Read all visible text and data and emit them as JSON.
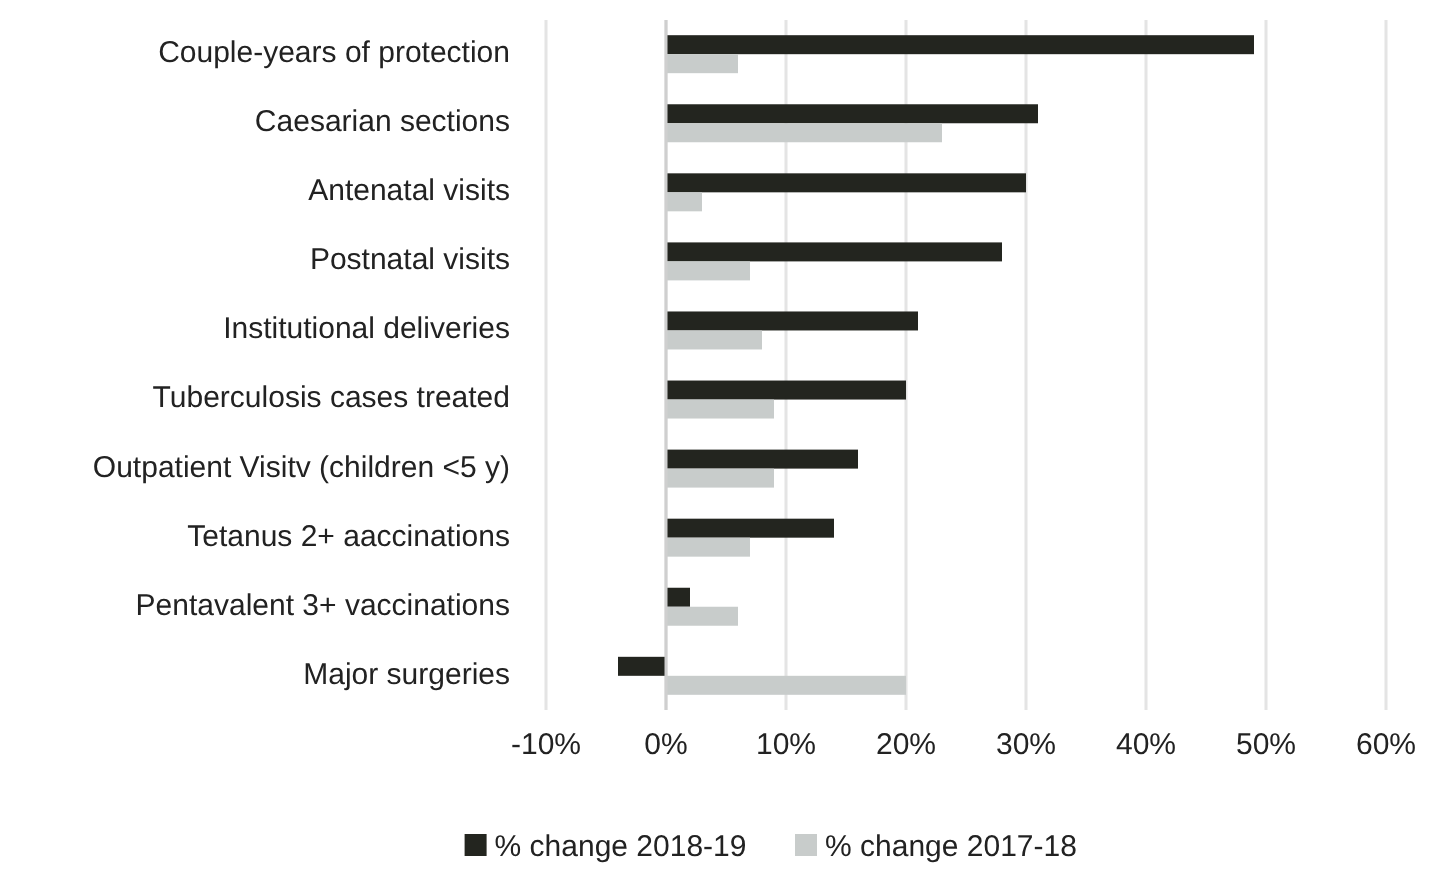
{
  "chart_data": {
    "type": "bar",
    "orientation": "horizontal",
    "categories": [
      "Couple-years of protection",
      "Caesarian sections",
      "Antenatal visits",
      "Postnatal visits",
      "Institutional deliveries",
      "Tuberculosis cases treated",
      "Outpatient Visitv (children <5 y)",
      "Tetanus 2+ aaccinations",
      "Pentavalent 3+ vaccinations",
      "Major surgeries"
    ],
    "series": [
      {
        "name": "% change 2018-19",
        "color": "#23251f",
        "values": [
          0.49,
          0.31,
          0.3,
          0.28,
          0.21,
          0.2,
          0.16,
          0.14,
          0.02,
          -0.04
        ]
      },
      {
        "name": "% change 2017-18",
        "color": "#c8cccb",
        "values": [
          0.06,
          0.23,
          0.03,
          0.07,
          0.08,
          0.09,
          0.09,
          0.07,
          0.06,
          0.2
        ]
      }
    ],
    "xlim": [
      -0.1,
      0.6
    ],
    "xticks": [
      {
        "value": -0.1,
        "label": "-10%"
      },
      {
        "value": 0,
        "label": "0%"
      },
      {
        "value": 0.1,
        "label": "10%"
      },
      {
        "value": 0.2,
        "label": "20%"
      },
      {
        "value": 0.3,
        "label": "30%"
      },
      {
        "value": 0.4,
        "label": "40%"
      },
      {
        "value": 0.5,
        "label": "50%"
      },
      {
        "value": 0.6,
        "label": "60%"
      }
    ],
    "grid": "x",
    "legend": "bottom"
  }
}
